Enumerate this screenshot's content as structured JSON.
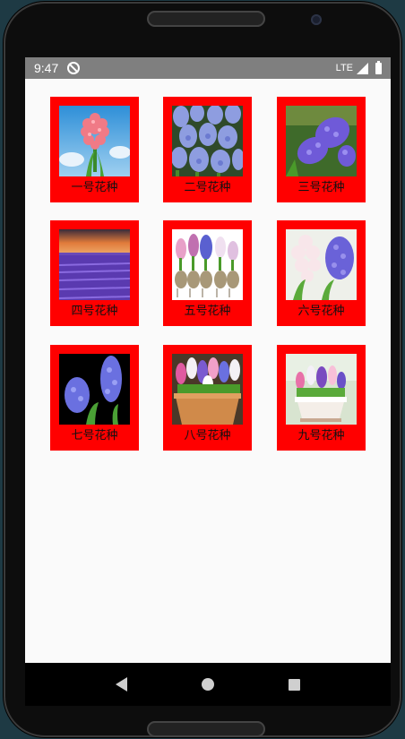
{
  "statusbar": {
    "time": "9:47",
    "network": "LTE"
  },
  "colors": {
    "card_background": "#ff0000",
    "screen_background": "#fafafa",
    "statusbar": "#7f7f7f",
    "navbar": "#000000"
  },
  "items": [
    {
      "label": "一号花种",
      "image": "pink-hyacinth"
    },
    {
      "label": "二号花种",
      "image": "blue-hyacinth-field"
    },
    {
      "label": "三号花种",
      "image": "purple-hyacinth"
    },
    {
      "label": "四号花种",
      "image": "lavender-field-sunset"
    },
    {
      "label": "五号花种",
      "image": "hyacinth-bulbs"
    },
    {
      "label": "六号花种",
      "image": "white-and-purple-hyacinth"
    },
    {
      "label": "七号花种",
      "image": "blue-hyacinth-dark"
    },
    {
      "label": "八号花种",
      "image": "hyacinth-pot"
    },
    {
      "label": "九号花种",
      "image": "hyacinth-white-pot"
    }
  ],
  "navbar": {
    "back": "back-icon",
    "home": "home-icon",
    "recent": "recent-apps-icon"
  }
}
